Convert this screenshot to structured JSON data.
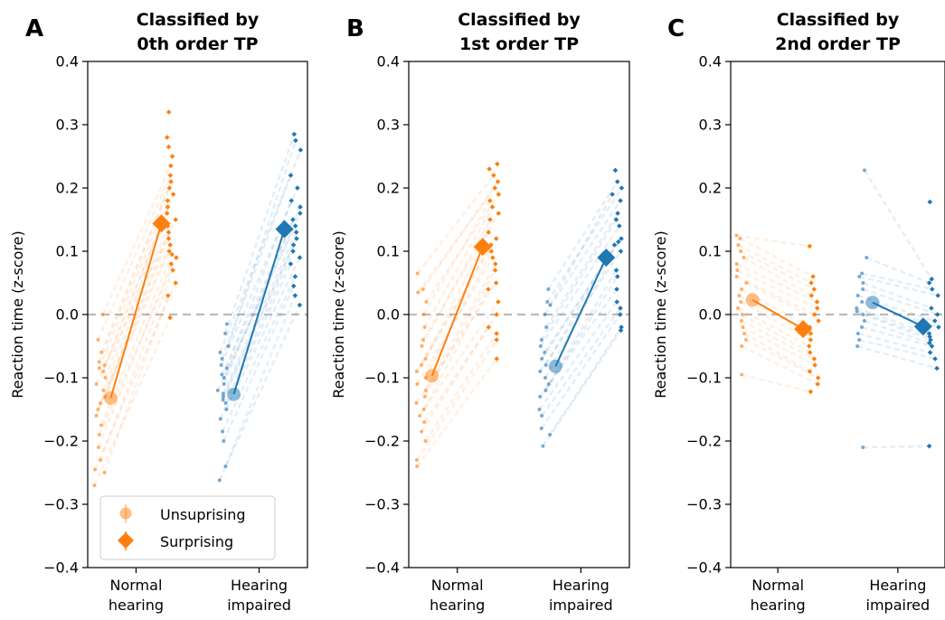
{
  "colors": {
    "normal_hearing": "#ff7f0e",
    "hearing_impaired": "#1f77b4",
    "zero_line": "#bbbbbb"
  },
  "legend": {
    "placement": "lower-left",
    "items": [
      {
        "label": "Unsuprising",
        "marker": "circle"
      },
      {
        "label": "Surprising",
        "marker": "diamond"
      }
    ]
  },
  "chart_data": [
    {
      "type": "scatter",
      "panel_letter": "A",
      "title_line1": "Classified by",
      "title_line2": "0th order TP",
      "ylabel": "Reaction time (z-score)",
      "ylim": [
        -0.4,
        0.4
      ],
      "yticks": [
        "−0.4",
        "−0.3",
        "−0.2",
        "−0.1",
        "0.0",
        "0.1",
        "0.2",
        "0.3",
        "0.4"
      ],
      "categories": [
        {
          "line1": "Normal",
          "line2": "hearing"
        },
        {
          "line1": "Hearing",
          "line2": "impaired"
        }
      ],
      "show_legend": true,
      "groups": [
        {
          "group": "normal_hearing",
          "unsurprising_mean": -0.132,
          "surprising_mean": 0.144,
          "unsurprising_points": [
            -0.27,
            -0.25,
            -0.245,
            -0.23,
            -0.21,
            -0.19,
            -0.175,
            -0.16,
            -0.15,
            -0.14,
            -0.13,
            -0.12,
            -0.11,
            -0.1,
            -0.09,
            -0.085,
            -0.08,
            -0.075,
            -0.06,
            -0.04,
            0.0
          ],
          "surprising_points": [
            -0.005,
            0.03,
            0.05,
            0.07,
            0.08,
            0.09,
            0.095,
            0.1,
            0.11,
            0.12,
            0.13,
            0.14,
            0.15,
            0.16,
            0.17,
            0.18,
            0.19,
            0.2,
            0.21,
            0.22,
            0.235,
            0.25,
            0.265,
            0.28,
            0.32
          ]
        },
        {
          "group": "hearing_impaired",
          "unsurprising_mean": -0.126,
          "surprising_mean": 0.135,
          "unsurprising_points": [
            -0.262,
            -0.24,
            -0.2,
            -0.185,
            -0.165,
            -0.15,
            -0.14,
            -0.135,
            -0.13,
            -0.125,
            -0.12,
            -0.11,
            -0.1,
            -0.095,
            -0.085,
            -0.08,
            -0.07,
            -0.06,
            -0.05,
            -0.03,
            -0.015
          ],
          "surprising_points": [
            0.015,
            0.03,
            0.045,
            0.06,
            0.08,
            0.09,
            0.1,
            0.11,
            0.12,
            0.13,
            0.14,
            0.15,
            0.16,
            0.17,
            0.18,
            0.2,
            0.22,
            0.26,
            0.275,
            0.285
          ]
        }
      ]
    },
    {
      "type": "scatter",
      "panel_letter": "B",
      "title_line1": "Classified by",
      "title_line2": "1st order TP",
      "ylabel": "Reaction time (z-score)",
      "ylim": [
        -0.4,
        0.4
      ],
      "yticks": [
        "−0.4",
        "−0.3",
        "−0.2",
        "−0.1",
        "0.0",
        "0.1",
        "0.2",
        "0.3",
        "0.4"
      ],
      "categories": [
        {
          "line1": "Normal",
          "line2": "hearing"
        },
        {
          "line1": "Hearing",
          "line2": "impaired"
        }
      ],
      "show_legend": false,
      "groups": [
        {
          "group": "normal_hearing",
          "unsurprising_mean": -0.097,
          "surprising_mean": 0.107,
          "unsurprising_points": [
            -0.24,
            -0.23,
            -0.2,
            -0.185,
            -0.17,
            -0.16,
            -0.15,
            -0.14,
            -0.13,
            -0.12,
            -0.11,
            -0.1,
            -0.09,
            -0.08,
            -0.07,
            -0.05,
            -0.04,
            -0.02,
            0.0,
            0.02,
            0.035,
            0.04,
            0.065
          ],
          "surprising_points": [
            -0.07,
            -0.04,
            -0.03,
            -0.02,
            0.0,
            0.02,
            0.04,
            0.05,
            0.07,
            0.08,
            0.09,
            0.1,
            0.11,
            0.12,
            0.13,
            0.15,
            0.16,
            0.17,
            0.18,
            0.19,
            0.2,
            0.21,
            0.22,
            0.23,
            0.238
          ]
        },
        {
          "group": "hearing_impaired",
          "unsurprising_mean": -0.082,
          "surprising_mean": 0.09,
          "unsurprising_points": [
            -0.208,
            -0.19,
            -0.18,
            -0.16,
            -0.15,
            -0.13,
            -0.12,
            -0.11,
            -0.1,
            -0.09,
            -0.08,
            -0.07,
            -0.06,
            -0.05,
            -0.04,
            -0.02,
            0.0,
            0.015,
            0.02,
            0.04
          ],
          "surprising_points": [
            -0.025,
            -0.02,
            0.0,
            0.01,
            0.02,
            0.04,
            0.06,
            0.07,
            0.09,
            0.1,
            0.11,
            0.115,
            0.12,
            0.14,
            0.15,
            0.16,
            0.18,
            0.19,
            0.2,
            0.21,
            0.228
          ]
        }
      ]
    },
    {
      "type": "scatter",
      "panel_letter": "C",
      "title_line1": "Classified by",
      "title_line2": "2nd order TP",
      "ylabel": "Reaction time (z-score)",
      "ylim": [
        -0.4,
        0.4
      ],
      "yticks": [
        "−0.4",
        "−0.3",
        "−0.2",
        "−0.1",
        "0.0",
        "0.1",
        "0.2",
        "0.3",
        "0.4"
      ],
      "categories": [
        {
          "line1": "Normal",
          "line2": "hearing"
        },
        {
          "line1": "Hearing",
          "line2": "impaired"
        }
      ],
      "show_legend": false,
      "groups": [
        {
          "group": "normal_hearing",
          "unsurprising_mean": 0.023,
          "surprising_mean": -0.023,
          "unsurprising_points": [
            -0.095,
            -0.05,
            -0.04,
            -0.03,
            -0.02,
            -0.01,
            0.0,
            0.01,
            0.02,
            0.03,
            0.04,
            0.05,
            0.06,
            0.07,
            0.08,
            0.09,
            0.1,
            0.11,
            0.12,
            0.125
          ],
          "surprising_points": [
            -0.122,
            -0.11,
            -0.1,
            -0.09,
            -0.08,
            -0.07,
            -0.06,
            -0.05,
            -0.04,
            -0.03,
            -0.02,
            -0.01,
            0.0,
            0.01,
            0.02,
            0.03,
            0.04,
            0.05,
            0.06,
            0.108
          ]
        },
        {
          "group": "hearing_impaired",
          "unsurprising_mean": 0.019,
          "surprising_mean": -0.019,
          "unsurprising_points": [
            -0.21,
            -0.05,
            -0.04,
            -0.03,
            -0.02,
            -0.01,
            0.0,
            0.005,
            0.01,
            0.02,
            0.03,
            0.04,
            0.05,
            0.06,
            0.065,
            0.09,
            0.228
          ],
          "surprising_points": [
            -0.208,
            -0.085,
            -0.07,
            -0.06,
            -0.05,
            -0.045,
            -0.04,
            -0.035,
            -0.03,
            -0.02,
            -0.01,
            0.0,
            0.01,
            0.03,
            0.04,
            0.05,
            0.056,
            0.178
          ]
        }
      ]
    }
  ]
}
